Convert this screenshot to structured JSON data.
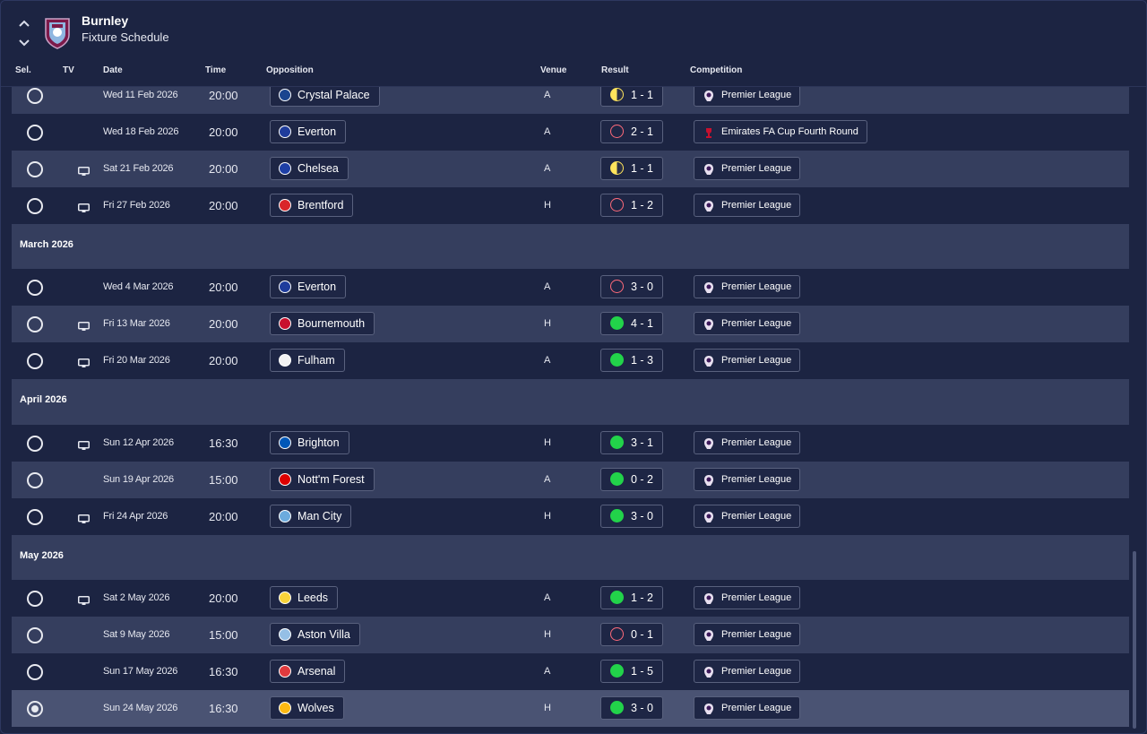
{
  "header": {
    "club_name": "Burnley",
    "subtitle": "Fixture Schedule",
    "columns": {
      "sel": "Sel.",
      "tv": "TV",
      "date": "Date",
      "time": "Time",
      "opposition": "Opposition",
      "venue": "Venue",
      "result": "Result",
      "competition": "Competition"
    }
  },
  "colors": {
    "win": "#22d34a",
    "loss": "#ff6b7a",
    "draw": "#ffe45c"
  },
  "months": {
    "march": "March 2026",
    "april": "April 2026",
    "may": "May 2026"
  },
  "fixtures": [
    {
      "tv": false,
      "date": "Wed 11 Feb 2026",
      "time": "20:00",
      "opponent": "Crystal Palace",
      "venue": "A",
      "result": "1 - 1",
      "outcome": "draw",
      "competition": "Premier League"
    },
    {
      "tv": false,
      "date": "Wed 18 Feb 2026",
      "time": "20:00",
      "opponent": "Everton",
      "venue": "A",
      "result": "2 - 1",
      "outcome": "loss",
      "competition": "Emirates FA Cup Fourth Round"
    },
    {
      "tv": true,
      "date": "Sat 21 Feb 2026",
      "time": "20:00",
      "opponent": "Chelsea",
      "venue": "A",
      "result": "1 - 1",
      "outcome": "draw",
      "competition": "Premier League"
    },
    {
      "tv": true,
      "date": "Fri 27 Feb 2026",
      "time": "20:00",
      "opponent": "Brentford",
      "venue": "H",
      "result": "1 - 2",
      "outcome": "loss",
      "competition": "Premier League"
    },
    {
      "tv": false,
      "date": "Wed 4 Mar 2026",
      "time": "20:00",
      "opponent": "Everton",
      "venue": "A",
      "result": "3 - 0",
      "outcome": "loss",
      "competition": "Premier League"
    },
    {
      "tv": true,
      "date": "Fri 13 Mar 2026",
      "time": "20:00",
      "opponent": "Bournemouth",
      "venue": "H",
      "result": "4 - 1",
      "outcome": "win",
      "competition": "Premier League"
    },
    {
      "tv": true,
      "date": "Fri 20 Mar 2026",
      "time": "20:00",
      "opponent": "Fulham",
      "venue": "A",
      "result": "1 - 3",
      "outcome": "win",
      "competition": "Premier League"
    },
    {
      "tv": true,
      "date": "Sun 12 Apr 2026",
      "time": "16:30",
      "opponent": "Brighton",
      "venue": "H",
      "result": "3 - 1",
      "outcome": "win",
      "competition": "Premier League"
    },
    {
      "tv": false,
      "date": "Sun 19 Apr 2026",
      "time": "15:00",
      "opponent": "Nott'm Forest",
      "venue": "A",
      "result": "0 - 2",
      "outcome": "win",
      "competition": "Premier League"
    },
    {
      "tv": true,
      "date": "Fri 24 Apr 2026",
      "time": "20:00",
      "opponent": "Man City",
      "venue": "H",
      "result": "3 - 0",
      "outcome": "win",
      "competition": "Premier League"
    },
    {
      "tv": true,
      "date": "Sat 2 May 2026",
      "time": "20:00",
      "opponent": "Leeds",
      "venue": "A",
      "result": "1 - 2",
      "outcome": "win",
      "competition": "Premier League"
    },
    {
      "tv": false,
      "date": "Sat 9 May 2026",
      "time": "15:00",
      "opponent": "Aston Villa",
      "venue": "H",
      "result": "0 - 1",
      "outcome": "loss",
      "competition": "Premier League"
    },
    {
      "tv": false,
      "date": "Sun 17 May 2026",
      "time": "16:30",
      "opponent": "Arsenal",
      "venue": "A",
      "result": "1 - 5",
      "outcome": "win",
      "competition": "Premier League"
    },
    {
      "tv": false,
      "date": "Sun 24 May 2026",
      "time": "16:30",
      "opponent": "Wolves",
      "venue": "H",
      "result": "3 - 0",
      "outcome": "win",
      "competition": "Premier League",
      "selected": true
    }
  ]
}
